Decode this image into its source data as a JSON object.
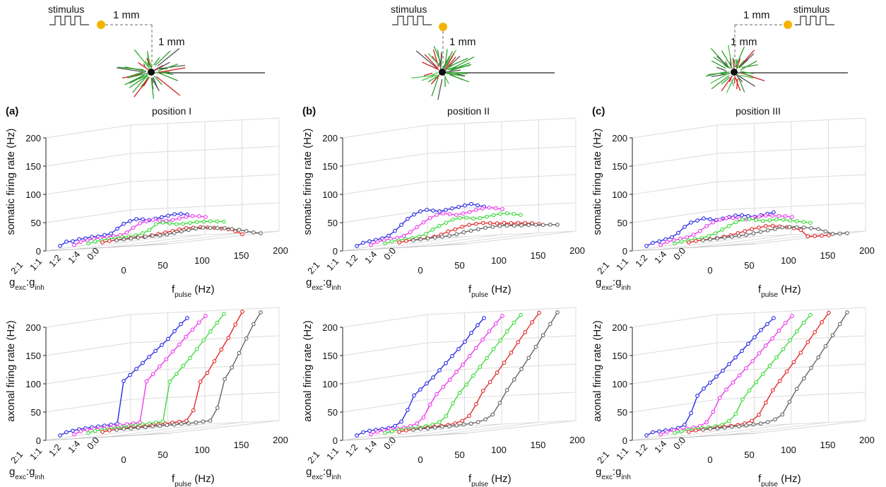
{
  "panels": [
    {
      "label": "(a)",
      "title": "position I",
      "stimulus": "stimulus",
      "dist_h": "1 mm",
      "dist_v": "1 mm"
    },
    {
      "label": "(b)",
      "title": "position II",
      "stimulus": "stimulus",
      "dist_v": "1 mm"
    },
    {
      "label": "(c)",
      "title": "position III",
      "stimulus": "stimulus",
      "dist_h": "1 mm",
      "dist_v": "1 mm"
    }
  ],
  "chart_data": [
    {
      "type": "line3d",
      "ylabel": "somatic firing rate (Hz)",
      "xlabel": [
        "f",
        "pulse",
        " (Hz)"
      ],
      "depth_label": [
        "g",
        "exc",
        ":g",
        "inh"
      ],
      "x": [
        0,
        10,
        20,
        30,
        40,
        50,
        60,
        70,
        80,
        90,
        100,
        110,
        120,
        130,
        140,
        150,
        160,
        170,
        180,
        190,
        200
      ],
      "xlim": [
        0,
        200
      ],
      "xticks": [
        0,
        50,
        100,
        150,
        200
      ],
      "ylim": [
        0,
        200
      ],
      "yticks": [
        0,
        50,
        100,
        150,
        200
      ],
      "grid": true,
      "series": [
        {
          "name": "2:1",
          "color": "#2b2be6",
          "values": [
            5,
            12,
            12,
            15,
            16,
            18,
            18,
            20,
            22,
            30,
            38,
            42,
            45,
            44,
            42,
            44,
            46,
            48,
            50,
            50,
            48
          ]
        },
        {
          "name": "1:1",
          "color": "#ee3cee",
          "values": [
            3,
            8,
            10,
            12,
            13,
            14,
            15,
            16,
            20,
            28,
            35,
            38,
            40,
            38,
            37,
            38,
            40,
            42,
            43,
            42,
            40
          ]
        },
        {
          "name": "1:2",
          "color": "#3cdc3c",
          "values": [
            2,
            5,
            6,
            8,
            9,
            10,
            10,
            12,
            15,
            20,
            30,
            32,
            30,
            28,
            28,
            29,
            30,
            30,
            30,
            29,
            28
          ]
        },
        {
          "name": "1:4",
          "color": "#e02a2a",
          "values": [
            0,
            2,
            3,
            4,
            5,
            6,
            6,
            8,
            10,
            12,
            14,
            16,
            18,
            18,
            18,
            17,
            16,
            14,
            12,
            8,
            2
          ]
        },
        {
          "name": "0:0",
          "color": "#666666",
          "values": [
            0,
            1,
            2,
            3,
            4,
            5,
            5,
            6,
            8,
            10,
            12,
            14,
            15,
            14,
            13,
            12,
            10,
            8,
            5,
            2,
            0
          ]
        }
      ]
    },
    {
      "type": "line3d",
      "ylabel": "somatic firing rate (Hz)",
      "xlabel": [
        "f",
        "pulse",
        " (Hz)"
      ],
      "depth_label": [
        "g",
        "exc",
        ":g",
        "inh"
      ],
      "x": [
        0,
        10,
        20,
        30,
        40,
        50,
        60,
        70,
        80,
        90,
        100,
        110,
        120,
        130,
        140,
        150,
        160,
        170,
        180,
        190,
        200
      ],
      "xlim": [
        0,
        200
      ],
      "xticks": [
        0,
        50,
        100,
        150,
        200
      ],
      "ylim": [
        0,
        200
      ],
      "yticks": [
        0,
        50,
        100,
        150,
        200
      ],
      "grid": true,
      "series": [
        {
          "name": "2:1",
          "color": "#2b2be6",
          "values": [
            5,
            10,
            12,
            14,
            16,
            20,
            28,
            38,
            48,
            55,
            60,
            62,
            60,
            58,
            60,
            62,
            64,
            66,
            68,
            65,
            62
          ]
        },
        {
          "name": "1:1",
          "color": "#ee3cee",
          "values": [
            3,
            8,
            10,
            12,
            13,
            16,
            22,
            30,
            38,
            45,
            50,
            52,
            50,
            48,
            50,
            52,
            55,
            57,
            58,
            56,
            54
          ]
        },
        {
          "name": "1:2",
          "color": "#3cdc3c",
          "values": [
            2,
            5,
            6,
            8,
            9,
            11,
            15,
            22,
            28,
            33,
            38,
            40,
            40,
            38,
            38,
            40,
            42,
            44,
            44,
            42,
            40
          ]
        },
        {
          "name": "1:4",
          "color": "#e02a2a",
          "values": [
            0,
            2,
            3,
            4,
            5,
            7,
            10,
            15,
            18,
            22,
            25,
            26,
            27,
            26,
            25,
            25,
            24,
            24,
            23,
            22,
            20
          ]
        },
        {
          "name": "0:0",
          "color": "#666666",
          "values": [
            0,
            1,
            2,
            3,
            4,
            5,
            7,
            10,
            12,
            14,
            16,
            17,
            18,
            18,
            17,
            17,
            17,
            17,
            16,
            16,
            15
          ]
        }
      ]
    },
    {
      "type": "line3d",
      "ylabel": "somatic firing rate (Hz)",
      "xlabel": [
        "f",
        "pulse",
        " (Hz)"
      ],
      "depth_label": [
        "g",
        "exc",
        ":g",
        "inh"
      ],
      "x": [
        0,
        10,
        20,
        30,
        40,
        50,
        60,
        70,
        80,
        90,
        100,
        110,
        120,
        130,
        140,
        150,
        160,
        170,
        180,
        190,
        200
      ],
      "xlim": [
        0,
        200
      ],
      "xticks": [
        0,
        50,
        100,
        150,
        200
      ],
      "ylim": [
        0,
        200
      ],
      "yticks": [
        0,
        50,
        100,
        150,
        200
      ],
      "grid": true,
      "series": [
        {
          "name": "2:1",
          "color": "#2b2be6",
          "values": [
            5,
            10,
            12,
            15,
            18,
            25,
            35,
            42,
            45,
            48,
            46,
            44,
            46,
            48,
            50,
            50,
            48,
            46,
            48,
            50,
            52
          ]
        },
        {
          "name": "1:1",
          "color": "#ee3cee",
          "values": [
            3,
            8,
            10,
            12,
            14,
            18,
            24,
            32,
            38,
            42,
            44,
            44,
            42,
            40,
            42,
            44,
            45,
            44,
            43,
            42,
            40
          ]
        },
        {
          "name": "1:2",
          "color": "#3cdc3c",
          "values": [
            2,
            5,
            6,
            8,
            9,
            12,
            16,
            22,
            28,
            34,
            38,
            38,
            36,
            34,
            34,
            35,
            34,
            32,
            30,
            28,
            26
          ]
        },
        {
          "name": "1:4",
          "color": "#e02a2a",
          "values": [
            0,
            2,
            3,
            4,
            5,
            7,
            9,
            12,
            15,
            18,
            20,
            22,
            22,
            20,
            18,
            16,
            12,
            0,
            0,
            0,
            0
          ]
        },
        {
          "name": "0:0",
          "color": "#666666",
          "values": [
            0,
            1,
            2,
            3,
            4,
            5,
            6,
            8,
            10,
            12,
            14,
            16,
            16,
            15,
            14,
            12,
            10,
            5,
            0,
            0,
            0
          ]
        }
      ]
    },
    {
      "type": "line3d",
      "ylabel": "axonal firing rate (Hz)",
      "xlabel": [
        "f",
        "pulse",
        " (Hz)"
      ],
      "depth_label": [
        "g",
        "exc",
        ":g",
        "inh"
      ],
      "x": [
        0,
        10,
        20,
        30,
        40,
        50,
        60,
        70,
        80,
        90,
        100,
        110,
        120,
        130,
        140,
        150,
        160,
        170,
        180,
        190,
        200
      ],
      "xlim": [
        0,
        200
      ],
      "xticks": [
        0,
        50,
        100,
        150,
        200
      ],
      "ylim": [
        0,
        200
      ],
      "yticks": [
        0,
        50,
        100,
        150,
        200
      ],
      "grid": true,
      "series": [
        {
          "name": "2:1",
          "color": "#2b2be6",
          "values": [
            5,
            10,
            12,
            14,
            15,
            16,
            17,
            18,
            19,
            20,
            95,
            105,
            115,
            125,
            135,
            145,
            155,
            165,
            178,
            190,
            200
          ]
        },
        {
          "name": "1:1",
          "color": "#ee3cee",
          "values": [
            3,
            8,
            10,
            11,
            12,
            13,
            14,
            15,
            16,
            17,
            18,
            90,
            102,
            115,
            127,
            140,
            152,
            165,
            177,
            189,
            200
          ]
        },
        {
          "name": "1:2",
          "color": "#3cdc3c",
          "values": [
            2,
            5,
            6,
            7,
            8,
            9,
            10,
            11,
            12,
            13,
            14,
            15,
            85,
            98,
            112,
            125,
            140,
            155,
            170,
            185,
            200
          ]
        },
        {
          "name": "1:4",
          "color": "#e02a2a",
          "values": [
            0,
            2,
            3,
            4,
            5,
            5,
            6,
            7,
            8,
            9,
            10,
            11,
            12,
            30,
            80,
            95,
            115,
            135,
            155,
            178,
            200
          ]
        },
        {
          "name": "0:0",
          "color": "#666666",
          "values": [
            0,
            1,
            1,
            2,
            2,
            3,
            3,
            4,
            4,
            5,
            5,
            6,
            7,
            8,
            30,
            80,
            100,
            125,
            150,
            175,
            195
          ]
        }
      ]
    },
    {
      "type": "line3d",
      "ylabel": "axonal firing rate (Hz)",
      "xlabel": [
        "f",
        "pulse",
        " (Hz)"
      ],
      "depth_label": [
        "g",
        "exc",
        ":g",
        "inh"
      ],
      "x": [
        0,
        10,
        20,
        30,
        40,
        50,
        60,
        70,
        80,
        90,
        100,
        110,
        120,
        130,
        140,
        150,
        160,
        170,
        180,
        190,
        200
      ],
      "xlim": [
        0,
        200
      ],
      "xticks": [
        0,
        50,
        100,
        150,
        200
      ],
      "ylim": [
        0,
        200
      ],
      "yticks": [
        0,
        50,
        100,
        150,
        200
      ],
      "grid": true,
      "series": [
        {
          "name": "2:1",
          "color": "#2b2be6",
          "values": [
            5,
            10,
            12,
            13,
            14,
            15,
            18,
            25,
            45,
            70,
            80,
            90,
            100,
            112,
            124,
            136,
            148,
            160,
            175,
            188,
            200
          ]
        },
        {
          "name": "1:1",
          "color": "#ee3cee",
          "values": [
            3,
            7,
            9,
            10,
            11,
            12,
            14,
            18,
            28,
            50,
            68,
            80,
            92,
            105,
            118,
            132,
            146,
            160,
            174,
            187,
            200
          ]
        },
        {
          "name": "1:2",
          "color": "#3cdc3c",
          "values": [
            2,
            4,
            6,
            7,
            8,
            9,
            10,
            12,
            16,
            26,
            48,
            66,
            80,
            95,
            110,
            125,
            140,
            155,
            170,
            185,
            198
          ]
        },
        {
          "name": "1:4",
          "color": "#e02a2a",
          "values": [
            0,
            2,
            3,
            4,
            5,
            6,
            7,
            8,
            10,
            14,
            22,
            42,
            65,
            80,
            96,
            113,
            130,
            148,
            165,
            182,
            198
          ]
        },
        {
          "name": "0:0",
          "color": "#666666",
          "values": [
            0,
            1,
            1,
            2,
            3,
            3,
            4,
            5,
            6,
            8,
            12,
            20,
            40,
            62,
            80,
            98,
            117,
            136,
            156,
            175,
            195
          ]
        }
      ]
    },
    {
      "type": "line3d",
      "ylabel": "axonal firing rate (Hz)",
      "xlabel": [
        "f",
        "pulse",
        " (Hz)"
      ],
      "depth_label": [
        "g",
        "exc",
        ":g",
        "inh"
      ],
      "x": [
        0,
        10,
        20,
        30,
        40,
        50,
        60,
        70,
        80,
        90,
        100,
        110,
        120,
        130,
        140,
        150,
        160,
        170,
        180,
        190,
        200
      ],
      "xlim": [
        0,
        200
      ],
      "xticks": [
        0,
        50,
        100,
        150,
        200
      ],
      "ylim": [
        0,
        200
      ],
      "yticks": [
        0,
        50,
        100,
        150,
        200
      ],
      "grid": true,
      "series": [
        {
          "name": "2:1",
          "color": "#2b2be6",
          "values": [
            5,
            10,
            11,
            12,
            13,
            15,
            20,
            40,
            70,
            82,
            92,
            102,
            112,
            123,
            134,
            145,
            157,
            168,
            180,
            190,
            200
          ]
        },
        {
          "name": "1:1",
          "color": "#ee3cee",
          "values": [
            3,
            7,
            9,
            10,
            11,
            12,
            14,
            20,
            38,
            62,
            76,
            88,
            100,
            112,
            124,
            137,
            150,
            162,
            175,
            188,
            200
          ]
        },
        {
          "name": "1:2",
          "color": "#3cdc3c",
          "values": [
            2,
            4,
            6,
            7,
            8,
            9,
            10,
            12,
            18,
            30,
            55,
            70,
            84,
            98,
            112,
            126,
            140,
            155,
            170,
            185,
            198
          ]
        },
        {
          "name": "1:4",
          "color": "#e02a2a",
          "values": [
            0,
            2,
            3,
            4,
            5,
            6,
            7,
            8,
            10,
            14,
            24,
            45,
            66,
            82,
            98,
            114,
            130,
            148,
            165,
            182,
            198
          ]
        },
        {
          "name": "0:0",
          "color": "#666666",
          "values": [
            0,
            1,
            1,
            2,
            3,
            3,
            4,
            5,
            6,
            8,
            12,
            20,
            42,
            64,
            82,
            100,
            118,
            137,
            156,
            175,
            195
          ]
        }
      ]
    }
  ]
}
